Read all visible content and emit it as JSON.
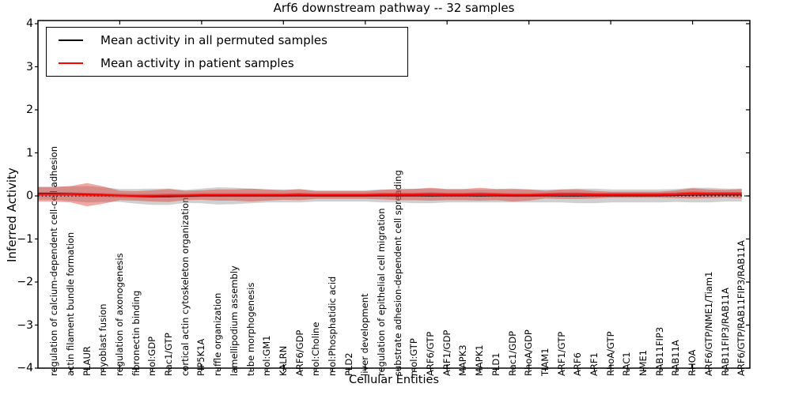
{
  "figure": {
    "title": "Arf6 downstream pathway -- 32 samples",
    "xlabel": "Cellular Entities",
    "ylabel": "Inferred Activity"
  },
  "legend": {
    "position": "upper left",
    "items": [
      {
        "label": "Mean activity in all permuted samples",
        "color": "#000000"
      },
      {
        "label": "Mean activity in patient samples",
        "color": "#ff0000"
      }
    ]
  },
  "chart_data": {
    "type": "line",
    "title": "Arf6 downstream pathway -- 32 samples",
    "xlabel": "Cellular Entities",
    "ylabel": "Inferred Activity",
    "ylim": [
      -4,
      4
    ],
    "xlim": [
      0,
      43.5
    ],
    "yticks": [
      "4",
      "3",
      "2",
      "1",
      "0",
      "−1",
      "−2",
      "−3",
      "−4"
    ],
    "ytick_values": [
      4,
      3,
      2,
      1,
      0,
      -1,
      -2,
      -3,
      -4
    ],
    "x_major_tick_values": [
      5,
      10,
      15,
      20,
      25,
      30,
      35,
      40
    ],
    "grid": false,
    "zero_line": {
      "style": "dotted",
      "color": "#000000",
      "y": 0
    },
    "categories": [
      "regulation of calcium-dependent cell-cell adhesion",
      "actin filament bundle formation",
      "PLAUR",
      "myoblast fusion",
      "regulation of axonogenesis",
      "fibronectin binding",
      "mol:GDP",
      "Rac1/GTP",
      "cortical actin cytoskeleton organization",
      "PIP5K1A",
      "ruffle organization",
      "lamellipodium assembly",
      "tube morphogenesis",
      "mol:GM1",
      "KALRN",
      "ARF6/GDP",
      "mol:Choline",
      "mol:Phosphatidic acid",
      "PLD2",
      "liver development",
      "regulation of epithelial cell migration",
      "substrate adhesion-dependent cell spreading",
      "mol:GTP",
      "ARF6/GTP",
      "ARF1/GDP",
      "MAPK3",
      "MAPK1",
      "PLD1",
      "Rac1/GDP",
      "RhoA/GDP",
      "TIAM1",
      "ARF1/GTP",
      "ARF6",
      "ARF1",
      "RhoA/GTP",
      "RAC1",
      "NME1",
      "RAB11FIP3",
      "RAB11A",
      "RHOA",
      "ARF6/GTP/NME1/Tiam1",
      "RAB11FIP3/RAB11A",
      "ARF6/GTP/RAB11FIP3/RAB11A"
    ],
    "series": [
      {
        "name": "Mean activity in all permuted samples",
        "color": "#000000",
        "band_color": "rgba(150,150,150,0.45)",
        "values": [
          0.06,
          0.05,
          0.04,
          0.03,
          0.01,
          -0.01,
          -0.02,
          -0.02,
          -0.01,
          0,
          0,
          0,
          0,
          0,
          0,
          0,
          0,
          0,
          0,
          0,
          0,
          0,
          0,
          0,
          0,
          0,
          0,
          0,
          0,
          0,
          0,
          0,
          0,
          0,
          0,
          0,
          0,
          0,
          0.01,
          0.02,
          0.02,
          0.02,
          0.02
        ],
        "band": [
          0.15,
          0.17,
          0.19,
          0.17,
          0.15,
          0.17,
          0.19,
          0.19,
          0.15,
          0.17,
          0.2,
          0.19,
          0.17,
          0.15,
          0.15,
          0.15,
          0.13,
          0.13,
          0.13,
          0.13,
          0.15,
          0.15,
          0.17,
          0.17,
          0.15,
          0.15,
          0.15,
          0.15,
          0.15,
          0.15,
          0.15,
          0.15,
          0.17,
          0.17,
          0.15,
          0.15,
          0.15,
          0.15,
          0.15,
          0.17,
          0.17,
          0.15,
          0.15
        ]
      },
      {
        "name": "Mean activity in patient samples",
        "color": "#ff0000",
        "band_color": "rgba(222,45,38,0.42)",
        "values": [
          0.04,
          0.04,
          0.03,
          0.02,
          0.01,
          0,
          0,
          0.01,
          0.01,
          0.02,
          0.02,
          0.02,
          0.02,
          0.02,
          0.02,
          0.03,
          0.02,
          0.02,
          0.02,
          0.02,
          0.03,
          0.03,
          0.03,
          0.04,
          0.03,
          0.03,
          0.04,
          0.03,
          0.02,
          0.02,
          0.03,
          0.04,
          0.04,
          0.03,
          0.03,
          0.03,
          0.03,
          0.03,
          0.04,
          0.06,
          0.05,
          0.05,
          0.05
        ],
        "band": [
          0.17,
          0.19,
          0.27,
          0.2,
          0.11,
          0.11,
          0.13,
          0.15,
          0.11,
          0.11,
          0.13,
          0.13,
          0.15,
          0.13,
          0.11,
          0.13,
          0.09,
          0.09,
          0.09,
          0.09,
          0.11,
          0.13,
          0.13,
          0.15,
          0.13,
          0.13,
          0.15,
          0.13,
          0.15,
          0.13,
          0.09,
          0.11,
          0.11,
          0.09,
          0.07,
          0.07,
          0.07,
          0.07,
          0.09,
          0.12,
          0.1,
          0.09,
          0.11
        ]
      }
    ]
  }
}
